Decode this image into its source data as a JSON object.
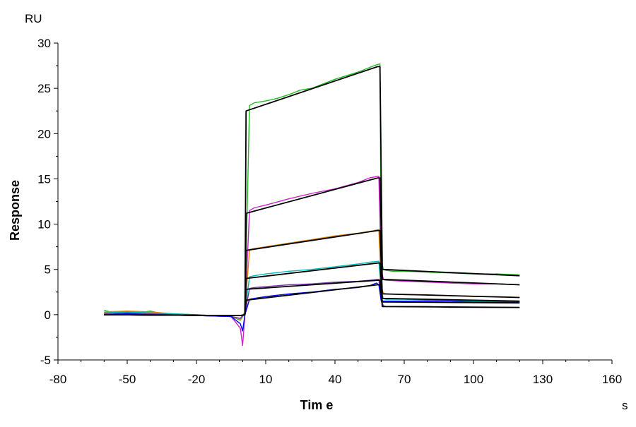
{
  "chart_data": {
    "type": "line",
    "title": "",
    "xlabel": "Tim e",
    "ylabel": "Response",
    "x_unit": "s",
    "y_unit": "RU",
    "xlim": [
      -80,
      160
    ],
    "ylim": [
      -5,
      30
    ],
    "x_ticks": [
      -80,
      -50,
      -20,
      10,
      40,
      70,
      100,
      130,
      160
    ],
    "y_ticks": [
      -5,
      0,
      5,
      10,
      15,
      20,
      25,
      30
    ],
    "grid": false,
    "legend": "none",
    "fit_color": "#000000",
    "series": [
      {
        "color": "#22bb22",
        "x": [
          -60,
          -55,
          -50,
          -45,
          -40,
          -35,
          -20,
          -5,
          -1,
          1,
          3,
          5,
          10,
          15,
          20,
          25,
          30,
          35,
          40,
          45,
          50,
          55,
          58,
          59.5,
          60,
          61,
          62,
          65,
          70,
          80,
          90,
          100,
          110,
          120
        ],
        "y": [
          0.5,
          0.1,
          0.4,
          0.2,
          0.4,
          0.1,
          -0.1,
          -0.2,
          -0.6,
          0.2,
          23.1,
          23.4,
          23.6,
          23.9,
          24.3,
          24.8,
          25.0,
          25.5,
          26.0,
          26.4,
          26.8,
          27.3,
          27.6,
          27.7,
          6.0,
          5.0,
          4.9,
          4.8,
          4.8,
          4.7,
          4.6,
          4.5,
          4.5,
          4.4
        ]
      },
      {
        "color": "#cc22cc",
        "x": [
          -60,
          -50,
          -40,
          -30,
          -20,
          -5,
          -1,
          0,
          1,
          3,
          5,
          10,
          20,
          30,
          40,
          50,
          55,
          59,
          60,
          61,
          62,
          70,
          80,
          90,
          100,
          110,
          120
        ],
        "y": [
          0.2,
          0.3,
          0.1,
          0.0,
          -0.1,
          -0.2,
          -1.5,
          -3.4,
          0.0,
          11.5,
          11.8,
          12.1,
          12.8,
          13.4,
          13.9,
          14.6,
          15.1,
          15.3,
          5.0,
          3.9,
          3.8,
          3.7,
          3.6,
          3.5,
          3.4,
          3.4,
          3.3
        ]
      },
      {
        "color": "#dd8800",
        "x": [
          -60,
          -50,
          -40,
          -30,
          -20,
          -5,
          -1,
          1,
          3,
          5,
          10,
          20,
          30,
          40,
          50,
          55,
          59,
          60,
          61,
          62,
          70,
          80,
          90,
          100,
          110,
          120
        ],
        "y": [
          0.3,
          0.4,
          0.3,
          0.1,
          0.0,
          -0.2,
          -0.5,
          0.3,
          7.2,
          7.3,
          7.5,
          7.9,
          8.3,
          8.7,
          9.0,
          9.2,
          9.4,
          3.0,
          2.4,
          2.3,
          2.2,
          2.2,
          2.1,
          2.0,
          2.0,
          1.9
        ]
      },
      {
        "color": "#00bbbb",
        "x": [
          -60,
          -50,
          -40,
          -30,
          -20,
          -5,
          -1,
          1,
          3,
          5,
          10,
          20,
          30,
          40,
          50,
          55,
          59,
          60,
          61,
          62,
          70,
          80,
          90,
          100,
          110,
          120
        ],
        "y": [
          0.2,
          0.3,
          0.2,
          0.1,
          0.0,
          -0.2,
          -0.4,
          0.2,
          4.2,
          4.3,
          4.5,
          4.8,
          5.0,
          5.3,
          5.6,
          5.8,
          5.9,
          2.5,
          1.8,
          1.7,
          1.7,
          1.6,
          1.6,
          1.5,
          1.5,
          1.4
        ]
      },
      {
        "color": "#7733aa",
        "x": [
          -60,
          -50,
          -40,
          -30,
          -20,
          -5,
          -1,
          1,
          3,
          5,
          10,
          20,
          30,
          40,
          50,
          55,
          59,
          60,
          61,
          62,
          70,
          80,
          90,
          100,
          110,
          120
        ],
        "y": [
          0.1,
          0.2,
          0.1,
          0.0,
          -0.1,
          -0.2,
          -0.4,
          0.1,
          2.9,
          3.0,
          3.1,
          3.3,
          3.4,
          3.6,
          3.7,
          3.8,
          3.9,
          1.5,
          1.0,
          0.9,
          0.9,
          0.9,
          0.8,
          0.8,
          0.8,
          0.8
        ]
      },
      {
        "color": "#0000ee",
        "x": [
          -60,
          -50,
          -40,
          -30,
          -20,
          -5,
          -1,
          0,
          1,
          3,
          5,
          10,
          20,
          30,
          40,
          50,
          55,
          58,
          59,
          60,
          61,
          62,
          70,
          80,
          90,
          100,
          110,
          120
        ],
        "y": [
          0.0,
          0.1,
          0.0,
          0.0,
          -0.1,
          -0.2,
          -1.0,
          -1.8,
          0.0,
          1.7,
          1.8,
          2.0,
          2.3,
          2.5,
          2.8,
          3.0,
          3.2,
          3.5,
          3.3,
          1.6,
          1.5,
          1.5,
          1.5,
          1.5,
          1.5,
          1.4,
          1.4,
          1.4
        ]
      }
    ],
    "fits": [
      {
        "x": [
          -60,
          -5,
          -1,
          1,
          1.5,
          58.5,
          59.5,
          60.5,
          120
        ],
        "y": [
          0.0,
          -0.1,
          -0.1,
          0.0,
          22.5,
          27.4,
          27.4,
          5.0,
          4.3
        ]
      },
      {
        "x": [
          -60,
          -5,
          -1,
          1,
          1.5,
          58.5,
          59.5,
          60.5,
          120
        ],
        "y": [
          0.0,
          -0.1,
          -0.1,
          0.0,
          11.2,
          15.1,
          15.1,
          3.9,
          3.3
        ]
      },
      {
        "x": [
          -60,
          -5,
          -1,
          1,
          1.5,
          58.5,
          59.5,
          60.5,
          120
        ],
        "y": [
          0.0,
          -0.1,
          -0.1,
          0.0,
          7.1,
          9.3,
          9.3,
          2.3,
          1.9
        ]
      },
      {
        "x": [
          -60,
          -5,
          -1,
          1,
          1.5,
          58.5,
          59.5,
          60.5,
          120
        ],
        "y": [
          0.0,
          -0.1,
          -0.1,
          0.0,
          4.0,
          5.7,
          5.7,
          1.8,
          1.5
        ]
      },
      {
        "x": [
          -60,
          -5,
          -1,
          1,
          1.5,
          58.5,
          59.5,
          60.5,
          120
        ],
        "y": [
          0.0,
          -0.1,
          -0.1,
          0.0,
          2.8,
          3.8,
          3.8,
          0.9,
          0.8
        ]
      },
      {
        "x": [
          -60,
          -5,
          -1,
          1,
          1.5,
          58.5,
          59.5,
          60.5,
          120
        ],
        "y": [
          0.0,
          -0.1,
          -0.1,
          0.0,
          1.6,
          3.3,
          3.3,
          1.4,
          1.3
        ]
      }
    ]
  }
}
